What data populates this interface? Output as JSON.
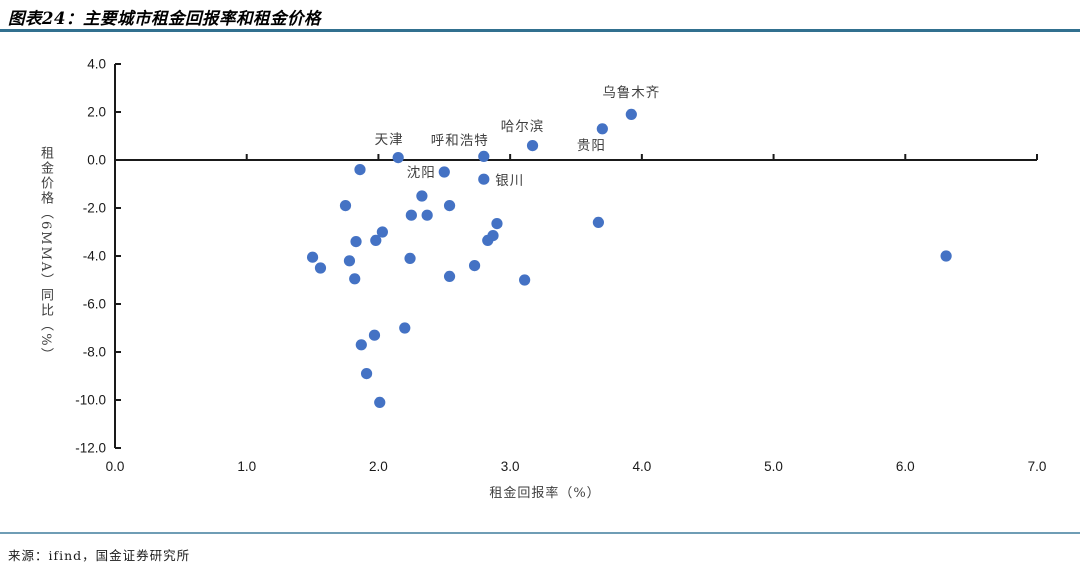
{
  "figure": {
    "title": "图表24：主要城市租金回报率和租金价格",
    "source": "来源：ifind，国金证券研究所"
  },
  "colors": {
    "dot": "#4472C4",
    "axis": "#1a1a1a",
    "tick_text": "#1a1a1a",
    "label_text": "#3f3f3f",
    "title_rule": "#31708F",
    "bottom_rule": "#6F9DB5"
  },
  "chart_data": {
    "type": "scatter",
    "title": "主要城市租金回报率和租金价格",
    "xlabel": "租金回报率（%）",
    "ylabel": "租金价格（6MMA）同比（%）",
    "xlim": [
      0.0,
      7.0
    ],
    "ylim": [
      -12.0,
      4.0
    ],
    "x_ticks": [
      "0.0",
      "1.0",
      "2.0",
      "3.0",
      "4.0",
      "5.0",
      "6.0",
      "7.0"
    ],
    "y_ticks": [
      "4.0",
      "2.0",
      "0.0",
      "-2.0",
      "-4.0",
      "-6.0",
      "-8.0",
      "-10.0",
      "-12.0"
    ],
    "grid": false,
    "legend": null,
    "series": [
      {
        "name": "主要城市",
        "marker": "circle",
        "color": "#4472C4",
        "points": [
          {
            "x": 2.15,
            "y": 0.1,
            "label": "天津",
            "label_offset": [
              -9,
              -20
            ]
          },
          {
            "x": 2.8,
            "y": 0.15,
            "label": "呼和浩特",
            "label_offset": [
              -24,
              -17
            ]
          },
          {
            "x": 3.17,
            "y": 0.6,
            "label": "哈尔滨",
            "label_offset": [
              -10,
              -21
            ]
          },
          {
            "x": 3.7,
            "y": 1.3,
            "label": "贵阳",
            "label_offset": [
              -11,
              15
            ]
          },
          {
            "x": 3.92,
            "y": 1.9,
            "label": "乌鲁木齐",
            "label_offset": [
              0,
              -23
            ]
          },
          {
            "x": 2.5,
            "y": -0.5,
            "label": "沈阳",
            "label_offset": [
              -23,
              -1
            ]
          },
          {
            "x": 2.8,
            "y": -0.8,
            "label": "银川",
            "label_offset": [
              26,
              0
            ]
          },
          {
            "x": 1.86,
            "y": -0.4
          },
          {
            "x": 2.33,
            "y": -1.5
          },
          {
            "x": 1.75,
            "y": -1.9
          },
          {
            "x": 2.54,
            "y": -1.9
          },
          {
            "x": 2.25,
            "y": -2.3
          },
          {
            "x": 2.37,
            "y": -2.3
          },
          {
            "x": 2.9,
            "y": -2.65
          },
          {
            "x": 3.67,
            "y": -2.6
          },
          {
            "x": 2.03,
            "y": -3.0
          },
          {
            "x": 2.83,
            "y": -3.35
          },
          {
            "x": 2.87,
            "y": -3.15
          },
          {
            "x": 1.83,
            "y": -3.4
          },
          {
            "x": 1.98,
            "y": -3.35
          },
          {
            "x": 1.5,
            "y": -4.05
          },
          {
            "x": 1.56,
            "y": -4.5
          },
          {
            "x": 1.78,
            "y": -4.2
          },
          {
            "x": 2.24,
            "y": -4.1
          },
          {
            "x": 2.73,
            "y": -4.4
          },
          {
            "x": 2.54,
            "y": -4.85
          },
          {
            "x": 1.82,
            "y": -4.95
          },
          {
            "x": 3.11,
            "y": -5.0
          },
          {
            "x": 6.31,
            "y": -4.0
          },
          {
            "x": 2.2,
            "y": -7.0
          },
          {
            "x": 1.97,
            "y": -7.3
          },
          {
            "x": 1.87,
            "y": -7.7
          },
          {
            "x": 1.91,
            "y": -8.9
          },
          {
            "x": 2.01,
            "y": -10.1
          }
        ]
      }
    ]
  }
}
